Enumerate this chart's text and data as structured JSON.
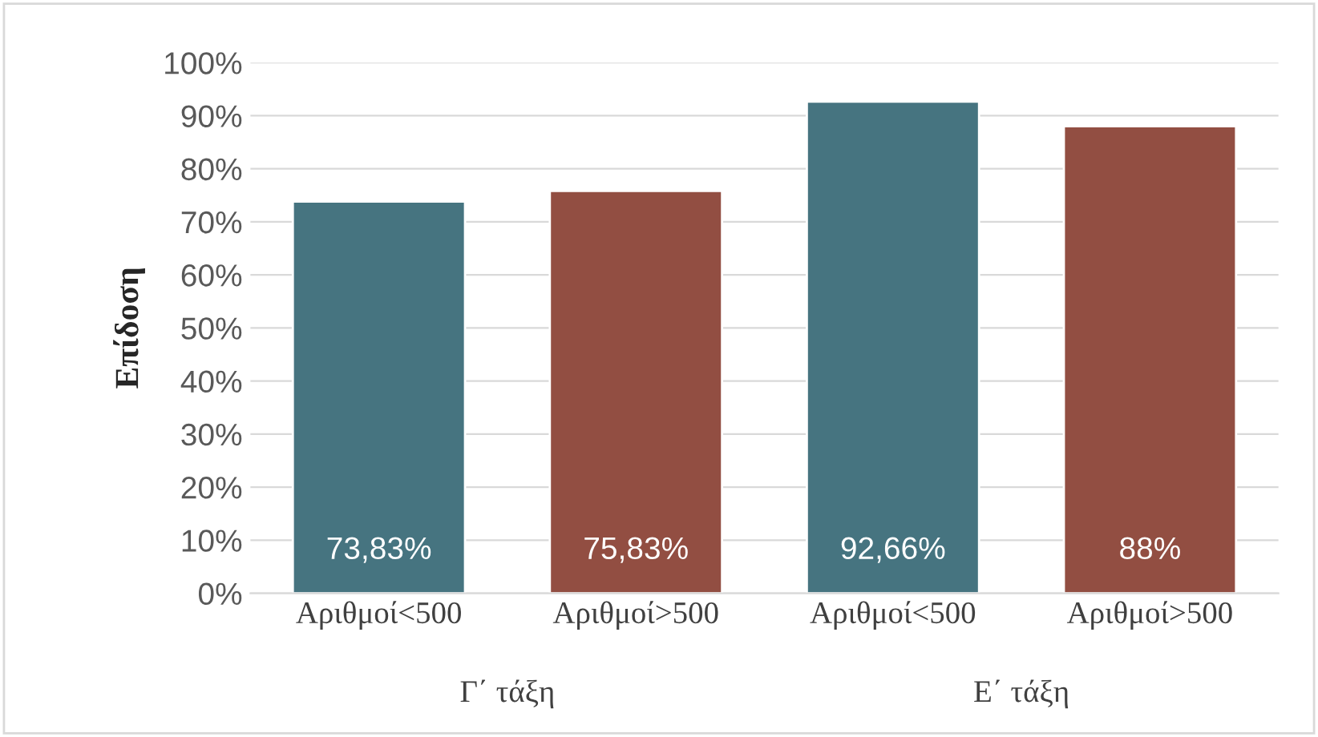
{
  "chart_data": {
    "type": "bar",
    "ylabel": "Επίδοση",
    "categories": [
      "Αριθμοί<500",
      "Αριθμοί>500",
      "Αριθμοί<500",
      "Αριθμοί>500"
    ],
    "values": [
      73.83,
      75.83,
      92.66,
      88
    ],
    "colors": [
      "#467480",
      "#924e42",
      "#467480",
      "#924e42"
    ],
    "value_labels": [
      "73,83%",
      "75,83%",
      "92,66%",
      "88%"
    ],
    "annotations": [
      "Γ΄ τάξη",
      "Ε΄ τάξη"
    ],
    "ylim": [
      0,
      100
    ],
    "yticks": [
      {
        "value": 0,
        "label": "0%"
      },
      {
        "value": 10,
        "label": "10%"
      },
      {
        "value": 20,
        "label": "20%"
      },
      {
        "value": 30,
        "label": "30%"
      },
      {
        "value": 40,
        "label": "40%"
      },
      {
        "value": 50,
        "label": "50%"
      },
      {
        "value": 60,
        "label": "60%"
      },
      {
        "value": 70,
        "label": "70%"
      },
      {
        "value": 80,
        "label": "80%"
      },
      {
        "value": 90,
        "label": "90%"
      },
      {
        "value": 100,
        "label": "100%"
      }
    ],
    "grid": "y",
    "legend": false
  }
}
